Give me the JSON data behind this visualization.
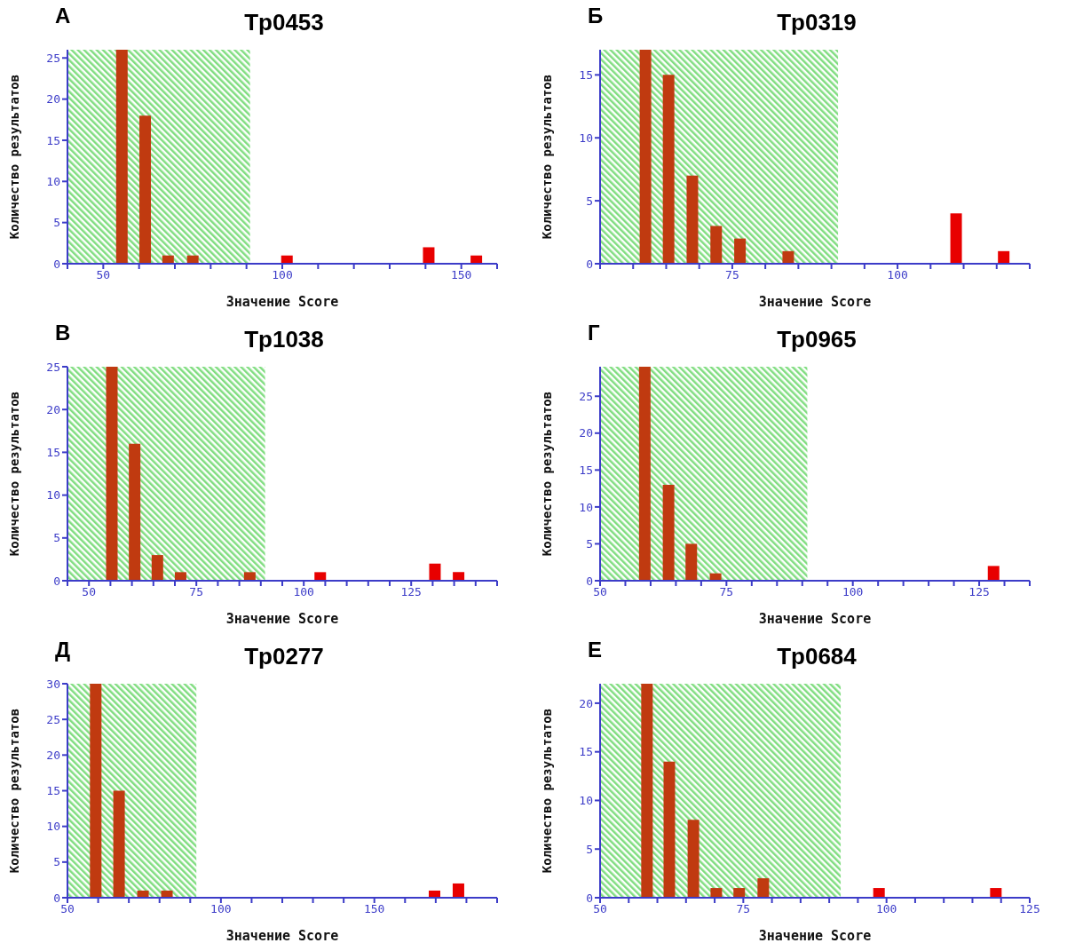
{
  "chart_data": [
    {
      "type": "bar",
      "title": "Tp0453",
      "annotations": [
        "А"
      ],
      "xlabel": "Значение Score",
      "ylabel": "Количество   результатов",
      "x": [
        55.3,
        61.8,
        68.2,
        75.1,
        101.4,
        141,
        154.3
      ],
      "values": [
        26,
        18,
        1,
        1,
        1,
        2,
        1
      ],
      "colors": [
        "#c03a10",
        "#c03a10",
        "#c03a10",
        "#c03a10",
        "#e80000",
        "#e80000",
        "#e80000"
      ],
      "bands": [
        {
          "axis": "x",
          "from": 40,
          "to": 91,
          "color": "#80dd80"
        }
      ],
      "xlim": [
        40,
        160
      ],
      "xticks": [
        {
          "value": 40,
          "label": null
        },
        50,
        {
          "value": 60,
          "label": null
        },
        {
          "value": 70,
          "label": null
        },
        {
          "value": 80,
          "label": null
        },
        {
          "value": 90,
          "label": null
        },
        100,
        {
          "value": 110,
          "label": null
        },
        {
          "value": 120,
          "label": null
        },
        {
          "value": 130,
          "label": null
        },
        {
          "value": 140,
          "label": null
        },
        150,
        {
          "value": 160,
          "label": null
        }
      ],
      "ylim": [
        0,
        26
      ],
      "yticks": [
        0,
        5,
        10,
        15,
        20,
        25
      ]
    },
    {
      "type": "bar",
      "title": "Tp0319",
      "annotations": [
        "Б"
      ],
      "xlabel": "Значение Score",
      "ylabel": "Количество   результатов",
      "x": [
        61.8,
        65.3,
        68.9,
        72.5,
        76.1,
        83.4,
        108.8,
        116
      ],
      "values": [
        17,
        15,
        7,
        3,
        2,
        1,
        4,
        1
      ],
      "colors": [
        "#c03a10",
        "#c03a10",
        "#c03a10",
        "#c03a10",
        "#c03a10",
        "#c03a10",
        "#e80000",
        "#e80000"
      ],
      "bands": [
        {
          "axis": "x",
          "from": 55,
          "to": 91,
          "color": "#80dd80"
        }
      ],
      "xlim": [
        55,
        120
      ],
      "xticks": [
        {
          "value": 55,
          "label": null
        },
        {
          "value": 60,
          "label": null
        },
        {
          "value": 65,
          "label": null
        },
        {
          "value": 70,
          "label": null
        },
        75,
        {
          "value": 80,
          "label": null
        },
        {
          "value": 85,
          "label": null
        },
        {
          "value": 90,
          "label": null
        },
        {
          "value": 95,
          "label": null
        },
        100,
        {
          "value": 105,
          "label": null
        },
        {
          "value": 110,
          "label": null
        },
        {
          "value": 115,
          "label": null
        },
        {
          "value": 120,
          "label": null
        }
      ],
      "ylim": [
        0,
        17
      ],
      "yticks": [
        0,
        5,
        10,
        15
      ]
    },
    {
      "type": "bar",
      "title": "Tp1038",
      "annotations": [
        "В"
      ],
      "xlabel": "Значение Score",
      "ylabel": "Количество   результатов",
      "x": [
        55.4,
        60.7,
        66,
        71.4,
        87.5,
        103.9,
        130.6,
        136.1
      ],
      "values": [
        25,
        16,
        3,
        1,
        1,
        1,
        2,
        1
      ],
      "colors": [
        "#c03a10",
        "#c03a10",
        "#c03a10",
        "#c03a10",
        "#c03a10",
        "#e80000",
        "#e80000",
        "#e80000"
      ],
      "bands": [
        {
          "axis": "x",
          "from": 45,
          "to": 91,
          "color": "#80dd80"
        }
      ],
      "xlim": [
        45,
        145
      ],
      "xticks": [
        {
          "value": 45,
          "label": null
        },
        50,
        {
          "value": 55,
          "label": null
        },
        {
          "value": 60,
          "label": null
        },
        {
          "value": 65,
          "label": null
        },
        {
          "value": 70,
          "label": null
        },
        75,
        {
          "value": 80,
          "label": null
        },
        {
          "value": 85,
          "label": null
        },
        {
          "value": 90,
          "label": null
        },
        {
          "value": 95,
          "label": null
        },
        100,
        {
          "value": 105,
          "label": null
        },
        {
          "value": 110,
          "label": null
        },
        {
          "value": 115,
          "label": null
        },
        {
          "value": 120,
          "label": null
        },
        125,
        {
          "value": 130,
          "label": null
        },
        {
          "value": 135,
          "label": null
        },
        {
          "value": 140,
          "label": null
        },
        {
          "value": 145,
          "label": null
        }
      ],
      "ylim": [
        0,
        25
      ],
      "yticks": [
        0,
        5,
        10,
        15,
        20,
        25
      ]
    },
    {
      "type": "bar",
      "title": "Tp0965",
      "annotations": [
        "Г"
      ],
      "xlabel": "Значение Score",
      "ylabel": "Количество   результатов",
      "x": [
        58.9,
        63.6,
        68.1,
        72.9,
        127.9
      ],
      "values": [
        29,
        13,
        5,
        1,
        2
      ],
      "colors": [
        "#c03a10",
        "#c03a10",
        "#c03a10",
        "#c03a10",
        "#e80000"
      ],
      "bands": [
        {
          "axis": "x",
          "from": 50,
          "to": 91,
          "color": "#80dd80"
        }
      ],
      "xlim": [
        50,
        135
      ],
      "xticks": [
        50,
        {
          "value": 55,
          "label": null
        },
        {
          "value": 60,
          "label": null
        },
        {
          "value": 65,
          "label": null
        },
        {
          "value": 70,
          "label": null
        },
        75,
        {
          "value": 80,
          "label": null
        },
        {
          "value": 85,
          "label": null
        },
        {
          "value": 90,
          "label": null
        },
        {
          "value": 95,
          "label": null
        },
        100,
        {
          "value": 105,
          "label": null
        },
        {
          "value": 110,
          "label": null
        },
        {
          "value": 115,
          "label": null
        },
        {
          "value": 120,
          "label": null
        },
        125,
        {
          "value": 130,
          "label": null
        },
        {
          "value": 135,
          "label": null
        }
      ],
      "ylim": [
        0,
        29
      ],
      "yticks": [
        0,
        5,
        10,
        15,
        20,
        25
      ]
    },
    {
      "type": "bar",
      "title": "Tp0277",
      "annotations": [
        "Д"
      ],
      "xlabel": "Значение Score",
      "ylabel": "Количество   результатов",
      "x": [
        59.1,
        66.7,
        74.5,
        82.3,
        169.5,
        177.3
      ],
      "values": [
        30,
        15,
        1,
        1,
        1,
        2
      ],
      "colors": [
        "#c03a10",
        "#c03a10",
        "#c03a10",
        "#c03a10",
        "#e80000",
        "#e80000"
      ],
      "bands": [
        {
          "axis": "x",
          "from": 50,
          "to": 92,
          "color": "#80dd80"
        }
      ],
      "xlim": [
        50,
        190
      ],
      "xticks": [
        50,
        {
          "value": 60,
          "label": null
        },
        {
          "value": 70,
          "label": null
        },
        {
          "value": 80,
          "label": null
        },
        {
          "value": 90,
          "label": null
        },
        100,
        {
          "value": 110,
          "label": null
        },
        {
          "value": 120,
          "label": null
        },
        {
          "value": 130,
          "label": null
        },
        {
          "value": 140,
          "label": null
        },
        150,
        {
          "value": 160,
          "label": null
        },
        {
          "value": 170,
          "label": null
        },
        {
          "value": 180,
          "label": null
        },
        {
          "value": 190,
          "label": null
        }
      ],
      "ylim": [
        0,
        30
      ],
      "yticks": [
        0,
        5,
        10,
        15,
        20,
        25,
        30
      ]
    },
    {
      "type": "bar",
      "title": "Tp0684",
      "annotations": [
        "Е"
      ],
      "xlabel": "Значение Score",
      "ylabel": "Количество   результатов",
      "x": [
        58.2,
        62.1,
        66.3,
        70.3,
        74.3,
        78.5,
        98.7,
        119.1
      ],
      "values": [
        22,
        14,
        8,
        1,
        1,
        2,
        1,
        1
      ],
      "colors": [
        "#c03a10",
        "#c03a10",
        "#c03a10",
        "#c03a10",
        "#c03a10",
        "#c03a10",
        "#e80000",
        "#e80000"
      ],
      "bands": [
        {
          "axis": "x",
          "from": 50,
          "to": 92,
          "color": "#80dd80"
        }
      ],
      "xlim": [
        50,
        125
      ],
      "xticks": [
        50,
        {
          "value": 55,
          "label": null
        },
        {
          "value": 60,
          "label": null
        },
        {
          "value": 65,
          "label": null
        },
        {
          "value": 70,
          "label": null
        },
        75,
        {
          "value": 80,
          "label": null
        },
        {
          "value": 85,
          "label": null
        },
        {
          "value": 90,
          "label": null
        },
        {
          "value": 95,
          "label": null
        },
        100,
        {
          "value": 105,
          "label": null
        },
        {
          "value": 110,
          "label": null
        },
        {
          "value": 115,
          "label": null
        },
        {
          "value": 120,
          "label": null
        },
        125
      ],
      "ylim": [
        0,
        22
      ],
      "yticks": [
        0,
        5,
        10,
        15,
        20
      ]
    }
  ]
}
